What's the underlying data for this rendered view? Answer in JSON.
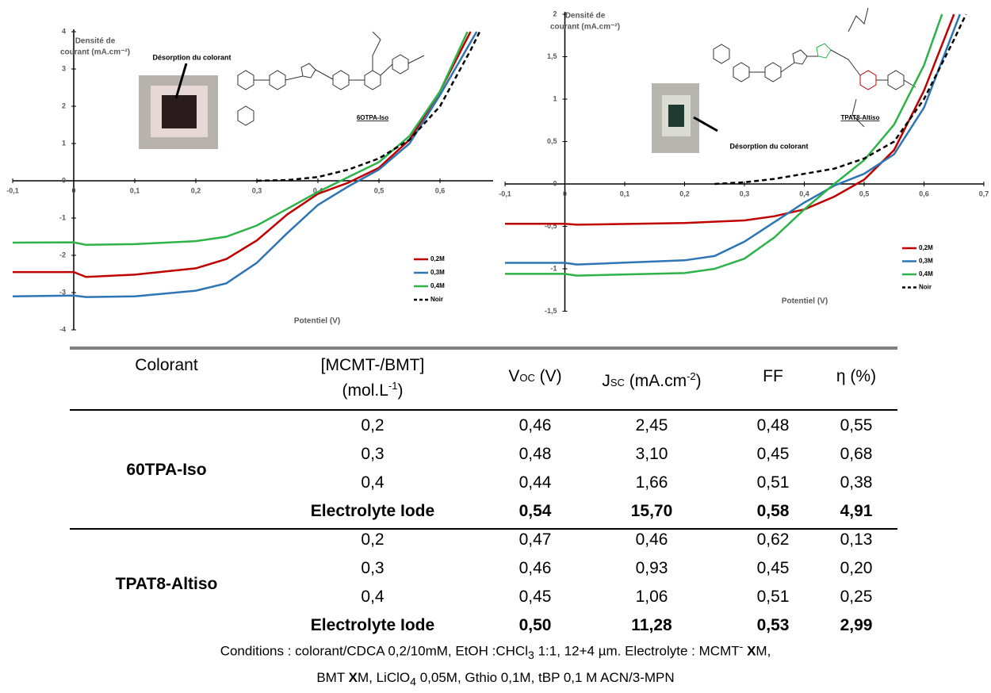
{
  "chart_data": [
    {
      "type": "line",
      "y_label": [
        "Densité de",
        "courant (mA.cm⁻²)"
      ],
      "x_label": "Potentiel (V)",
      "annotations": [
        "Désorption du colorant",
        "6OTPA-Iso"
      ],
      "xlim": [
        -0.1,
        0.7
      ],
      "ylim": [
        -4,
        4
      ],
      "xticks": [
        {
          "value": -0.1,
          "label": "-0,1"
        },
        0,
        {
          "value": 0.1,
          "label": "0,1"
        },
        {
          "value": 0.2,
          "label": "0,2"
        },
        {
          "value": 0.3,
          "label": "0,3"
        },
        {
          "value": 0.4,
          "label": "0,4"
        },
        {
          "value": 0.5,
          "label": "0,5"
        },
        {
          "value": 0.6,
          "label": "0,6"
        }
      ],
      "yticks": [
        -4,
        -3,
        -2,
        -1,
        0,
        1,
        2,
        3,
        4
      ],
      "series": [
        {
          "name": "0,2M",
          "color": "#c00000",
          "style": "solid",
          "x": [
            -0.1,
            0,
            0.02,
            0.1,
            0.2,
            0.25,
            0.3,
            0.35,
            0.4,
            0.45,
            0.5,
            0.55,
            0.6,
            0.65
          ],
          "values": [
            -2.45,
            -2.45,
            -2.58,
            -2.52,
            -2.35,
            -2.1,
            -1.6,
            -0.9,
            -0.35,
            -0.05,
            0.35,
            1.1,
            2.4,
            4.0
          ]
        },
        {
          "name": "0,3M",
          "color": "#2e75b6",
          "style": "solid",
          "x": [
            -0.1,
            0,
            0.02,
            0.1,
            0.2,
            0.25,
            0.3,
            0.35,
            0.4,
            0.45,
            0.5,
            0.55,
            0.6,
            0.66
          ],
          "values": [
            -3.1,
            -3.08,
            -3.12,
            -3.1,
            -2.95,
            -2.75,
            -2.2,
            -1.4,
            -0.65,
            -0.15,
            0.3,
            1.0,
            2.3,
            4.0
          ]
        },
        {
          "name": "0,4M",
          "color": "#2db34a",
          "style": "solid",
          "x": [
            -0.1,
            0,
            0.02,
            0.1,
            0.2,
            0.25,
            0.3,
            0.35,
            0.4,
            0.45,
            0.5,
            0.55,
            0.6,
            0.645
          ],
          "values": [
            -1.66,
            -1.65,
            -1.72,
            -1.7,
            -1.62,
            -1.5,
            -1.2,
            -0.75,
            -0.3,
            0.1,
            0.5,
            1.2,
            2.4,
            4.0
          ]
        },
        {
          "name": "Noir",
          "color": "#000000",
          "style": "dashed",
          "x": [
            0.3,
            0.35,
            0.4,
            0.45,
            0.5,
            0.55,
            0.6,
            0.65,
            0.665
          ],
          "values": [
            0,
            0.02,
            0.1,
            0.3,
            0.6,
            1.1,
            2.0,
            3.5,
            4.0
          ]
        }
      ]
    },
    {
      "type": "line",
      "y_label": [
        "Densité de",
        "courant (mA.cm⁻²)"
      ],
      "x_label": "Potentiel (V)",
      "annotations": [
        "Désorption du colorant",
        "TPAT8-Altiso"
      ],
      "xlim": [
        -0.1,
        0.7
      ],
      "ylim": [
        -1.5,
        2
      ],
      "xticks": [
        {
          "value": -0.1,
          "label": "-0,1"
        },
        0,
        {
          "value": 0.1,
          "label": "0,1"
        },
        {
          "value": 0.2,
          "label": "0,2"
        },
        {
          "value": 0.3,
          "label": "0,3"
        },
        {
          "value": 0.4,
          "label": "0,4"
        },
        {
          "value": 0.5,
          "label": "0,5"
        },
        {
          "value": 0.6,
          "label": "0,6"
        },
        {
          "value": 0.7,
          "label": "0,7"
        }
      ],
      "yticks": [
        {
          "value": -1.5,
          "label": "-1,5"
        },
        -1,
        {
          "value": -0.5,
          "label": "-0,5"
        },
        0,
        {
          "value": 0.5,
          "label": "0,5"
        },
        1,
        {
          "value": 1.5,
          "label": "1,5"
        },
        2
      ],
      "series": [
        {
          "name": "0,2M",
          "color": "#c00000",
          "style": "solid",
          "x": [
            -0.1,
            0,
            0.02,
            0.2,
            0.3,
            0.35,
            0.4,
            0.45,
            0.5,
            0.55,
            0.6,
            0.65
          ],
          "values": [
            -0.47,
            -0.47,
            -0.48,
            -0.46,
            -0.43,
            -0.38,
            -0.3,
            -0.15,
            0.05,
            0.4,
            1.1,
            2.0
          ]
        },
        {
          "name": "0,3M",
          "color": "#2e75b6",
          "style": "solid",
          "x": [
            -0.1,
            0,
            0.02,
            0.2,
            0.25,
            0.3,
            0.35,
            0.4,
            0.45,
            0.5,
            0.55,
            0.6,
            0.66
          ],
          "values": [
            -0.93,
            -0.93,
            -0.95,
            -0.9,
            -0.85,
            -0.68,
            -0.45,
            -0.22,
            -0.02,
            0.12,
            0.35,
            0.9,
            2.0
          ]
        },
        {
          "name": "0,4M",
          "color": "#2db34a",
          "style": "solid",
          "x": [
            -0.1,
            0,
            0.02,
            0.2,
            0.25,
            0.3,
            0.35,
            0.4,
            0.45,
            0.5,
            0.55,
            0.6,
            0.63
          ],
          "values": [
            -1.06,
            -1.06,
            -1.08,
            -1.05,
            -1.0,
            -0.88,
            -0.63,
            -0.3,
            0.0,
            0.28,
            0.7,
            1.4,
            2.0
          ]
        },
        {
          "name": "Noir",
          "color": "#000000",
          "style": "dashed",
          "x": [
            0.25,
            0.3,
            0.35,
            0.4,
            0.45,
            0.5,
            0.55,
            0.6,
            0.65,
            0.67
          ],
          "values": [
            0,
            0.02,
            0.06,
            0.12,
            0.18,
            0.3,
            0.5,
            1.0,
            1.7,
            2.0
          ]
        }
      ]
    }
  ],
  "table": {
    "header": [
      [
        "Colorant"
      ],
      [
        "[MCMT-/BMT]",
        "(mol.L",
        "-1",
        ")"
      ],
      [
        "V",
        "OC",
        " (V)"
      ],
      [
        "J",
        "SC",
        " (mA.cm",
        "-2",
        ")"
      ],
      [
        "FF"
      ],
      [
        "η (%)"
      ]
    ],
    "groups": [
      {
        "name": "60TPA-Iso",
        "rows": [
          [
            "0,2",
            "0,46",
            "2,45",
            "0,48",
            "0,55"
          ],
          [
            "0,3",
            "0,48",
            "3,10",
            "0,45",
            "0,68"
          ],
          [
            "0,4",
            "0,44",
            "1,66",
            "0,51",
            "0,38"
          ],
          [
            "Electrolyte Iode",
            "0,54",
            "15,70",
            "0,58",
            "4,91"
          ]
        ]
      },
      {
        "name": "TPAT8-Altiso",
        "rows": [
          [
            "0,2",
            "0,47",
            "0,46",
            "0,62",
            "0,13"
          ],
          [
            "0,3",
            "0,46",
            "0,93",
            "0,45",
            "0,20"
          ],
          [
            "0,4",
            "0,45",
            "1,06",
            "0,51",
            "0,25"
          ],
          [
            "Electrolyte Iode",
            "0,50",
            "11,28",
            "0,53",
            "2,99"
          ]
        ]
      }
    ],
    "footnote": [
      "Conditions : colorant/CDCA 0,2/10mM, EtOH :CHCl",
      "3",
      " 1:1, 12+4 µm. Electrolyte : MCMT",
      "-",
      "X",
      "M,",
      "BMT ",
      "X",
      "M, LiClO",
      "4",
      " 0,05M, Gthio 0,1M, tBP 0,1 M ACN/3-MPN"
    ]
  }
}
